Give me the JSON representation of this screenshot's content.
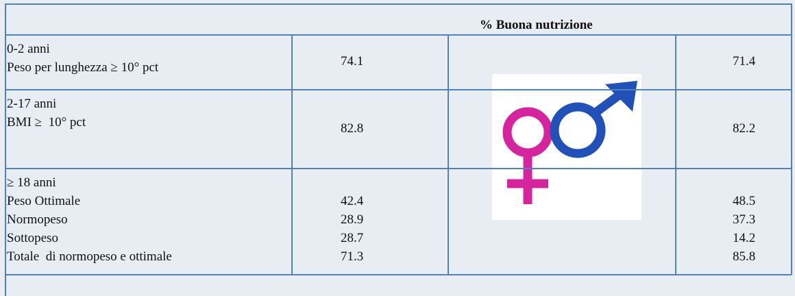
{
  "table": {
    "title": "% Buona nutrizione",
    "rows": [
      {
        "label": [
          "0-2 anni",
          "Peso per lunghezza ≥ 10° pct"
        ],
        "female": 74.1,
        "male": 71.4
      },
      {
        "label": [
          "2-17 anni",
          "BMI ≥  10° pct"
        ],
        "female": 82.8,
        "male": 82.2
      },
      {
        "label": [
          "≥ 18 anni"
        ],
        "items": [
          {
            "label": "Peso Ottimale",
            "female": 42.4,
            "male": 48.5
          },
          {
            "label": "Normopeso",
            "female": 28.9,
            "male": 37.3
          },
          {
            "label": "Sottopeso",
            "female": 28.7,
            "male": 14.2
          },
          {
            "label": "Totale  di normopeso e ottimale",
            "female": 71.3,
            "male": 85.8
          }
        ]
      }
    ]
  }
}
